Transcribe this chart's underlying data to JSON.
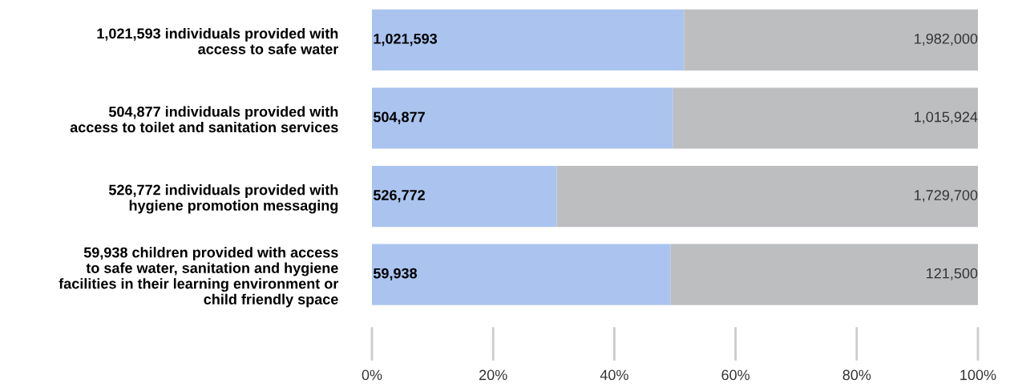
{
  "chart_data": {
    "type": "bar",
    "orientation": "horizontal",
    "stacked": true,
    "categories": [
      "1,021,593 individuals provided with\naccess to safe water",
      "504,877 individuals provided with\naccess to toilet and sanitation services",
      "526,772 individuals provided with\nhygiene promotion messaging",
      "59,938 children provided with access\nto safe water, sanitation and hygiene\nfacilities in their learning environment or\nchild friendly space"
    ],
    "series": [
      {
        "color": "#aac4ef",
        "values": [
          51.5,
          49.7,
          30.5,
          49.3
        ]
      },
      {
        "color": "#bdbec0",
        "values": [
          48.5,
          50.3,
          69.5,
          50.7
        ]
      }
    ],
    "annotations": [
      "1,021,593",
      "1,982,000",
      "504,877",
      "1,015,924",
      "526,772",
      "1,729,700",
      "59,938",
      "121,500"
    ],
    "xlim": [
      0,
      100
    ],
    "xticks": [
      {
        "value": 0,
        "label": "0%"
      },
      {
        "value": 20,
        "label": "20%"
      },
      {
        "value": 40,
        "label": "40%"
      },
      {
        "value": 60,
        "label": "60%"
      },
      {
        "value": 80,
        "label": "80%"
      },
      {
        "value": 100,
        "label": "100%"
      }
    ],
    "grid": false,
    "legend": false
  }
}
